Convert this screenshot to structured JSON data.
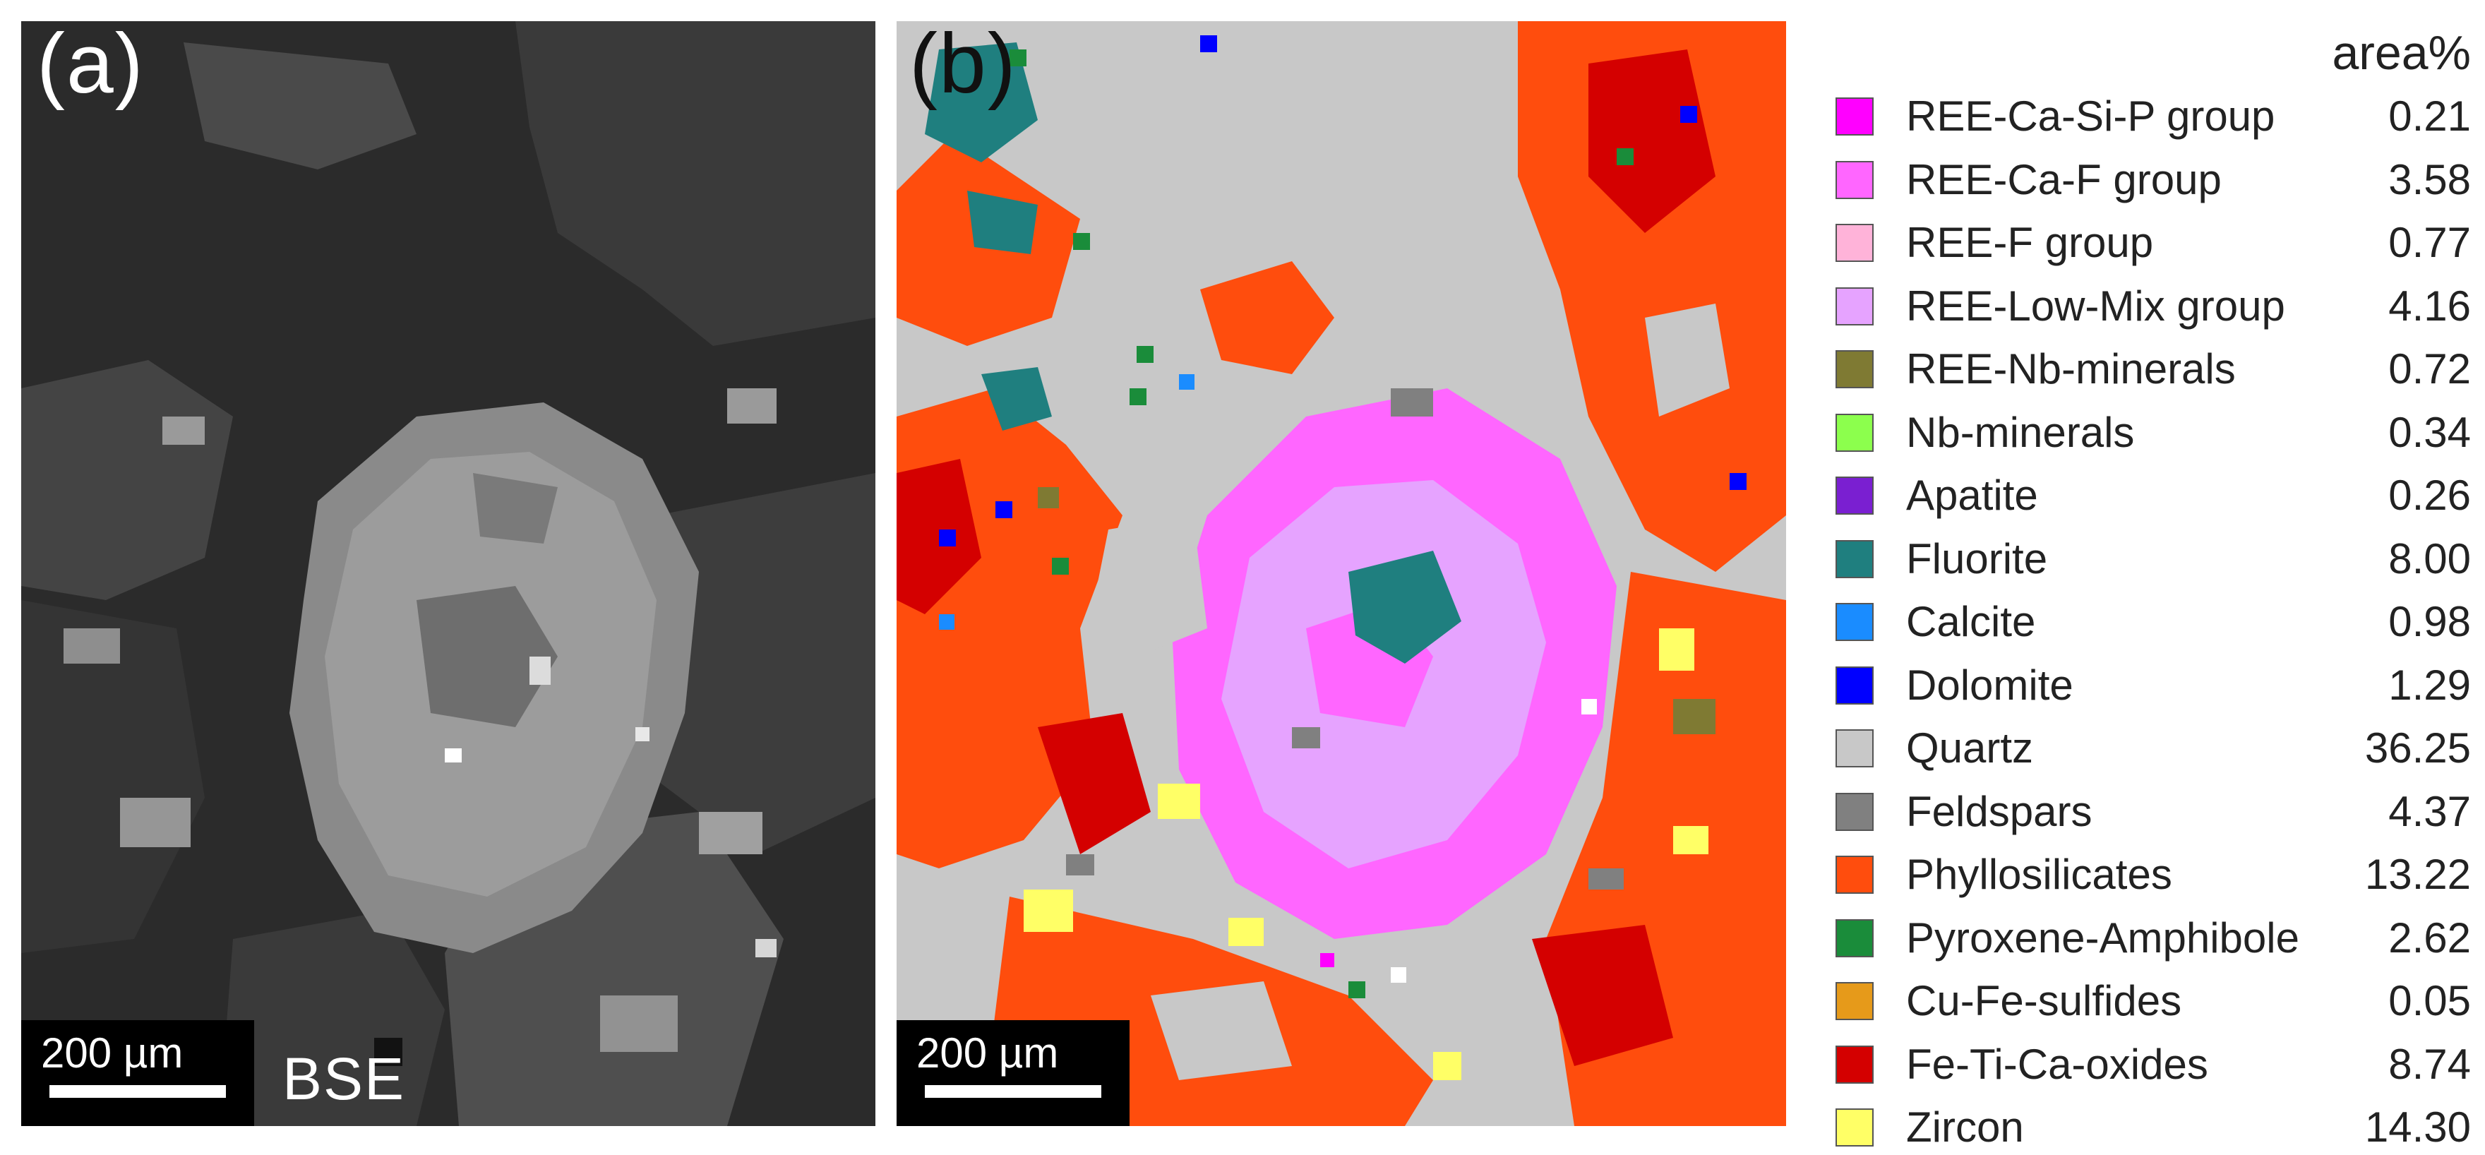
{
  "panel_a": {
    "label": "(a)",
    "scalebar": "200 µm",
    "mode": "BSE"
  },
  "panel_b": {
    "label": "(b)",
    "scalebar": "200 µm"
  },
  "legend": {
    "header": "area%",
    "items": [
      {
        "name": "REE-Ca-Si-P group",
        "value": "0.21",
        "color": "#ff00ff"
      },
      {
        "name": "REE-Ca-F group",
        "value": "3.58",
        "color": "#ff66ff"
      },
      {
        "name": "REE-F group",
        "value": "0.77",
        "color": "#ffb3d9"
      },
      {
        "name": "REE-Low-Mix group",
        "value": "4.16",
        "color": "#e6a3ff"
      },
      {
        "name": "REE-Nb-minerals",
        "value": "0.72",
        "color": "#7f7a33"
      },
      {
        "name": "Nb-minerals",
        "value": "0.34",
        "color": "#8cff4d"
      },
      {
        "name": "Apatite",
        "value": "0.26",
        "color": "#7a1fd1"
      },
      {
        "name": "Fluorite",
        "value": "8.00",
        "color": "#1f7f7f"
      },
      {
        "name": "Calcite",
        "value": "0.98",
        "color": "#1a8cff"
      },
      {
        "name": "Dolomite",
        "value": "1.29",
        "color": "#0000ff"
      },
      {
        "name": "Quartz",
        "value": "36.25",
        "color": "#c8c8c8"
      },
      {
        "name": "Feldspars",
        "value": "4.37",
        "color": "#808080"
      },
      {
        "name": "Phyllosilicates",
        "value": "13.22",
        "color": "#ff4d0d"
      },
      {
        "name": "Pyroxene-Amphibole",
        "value": "2.62",
        "color": "#1a8c3a"
      },
      {
        "name": "Cu-Fe-sulfides",
        "value": "0.05",
        "color": "#e69a1a"
      },
      {
        "name": "Fe-Ti-Ca-oxides",
        "value": "8.74",
        "color": "#d40000"
      },
      {
        "name": "Zircon",
        "value": "14.30",
        "color": "#ffff66"
      }
    ]
  }
}
